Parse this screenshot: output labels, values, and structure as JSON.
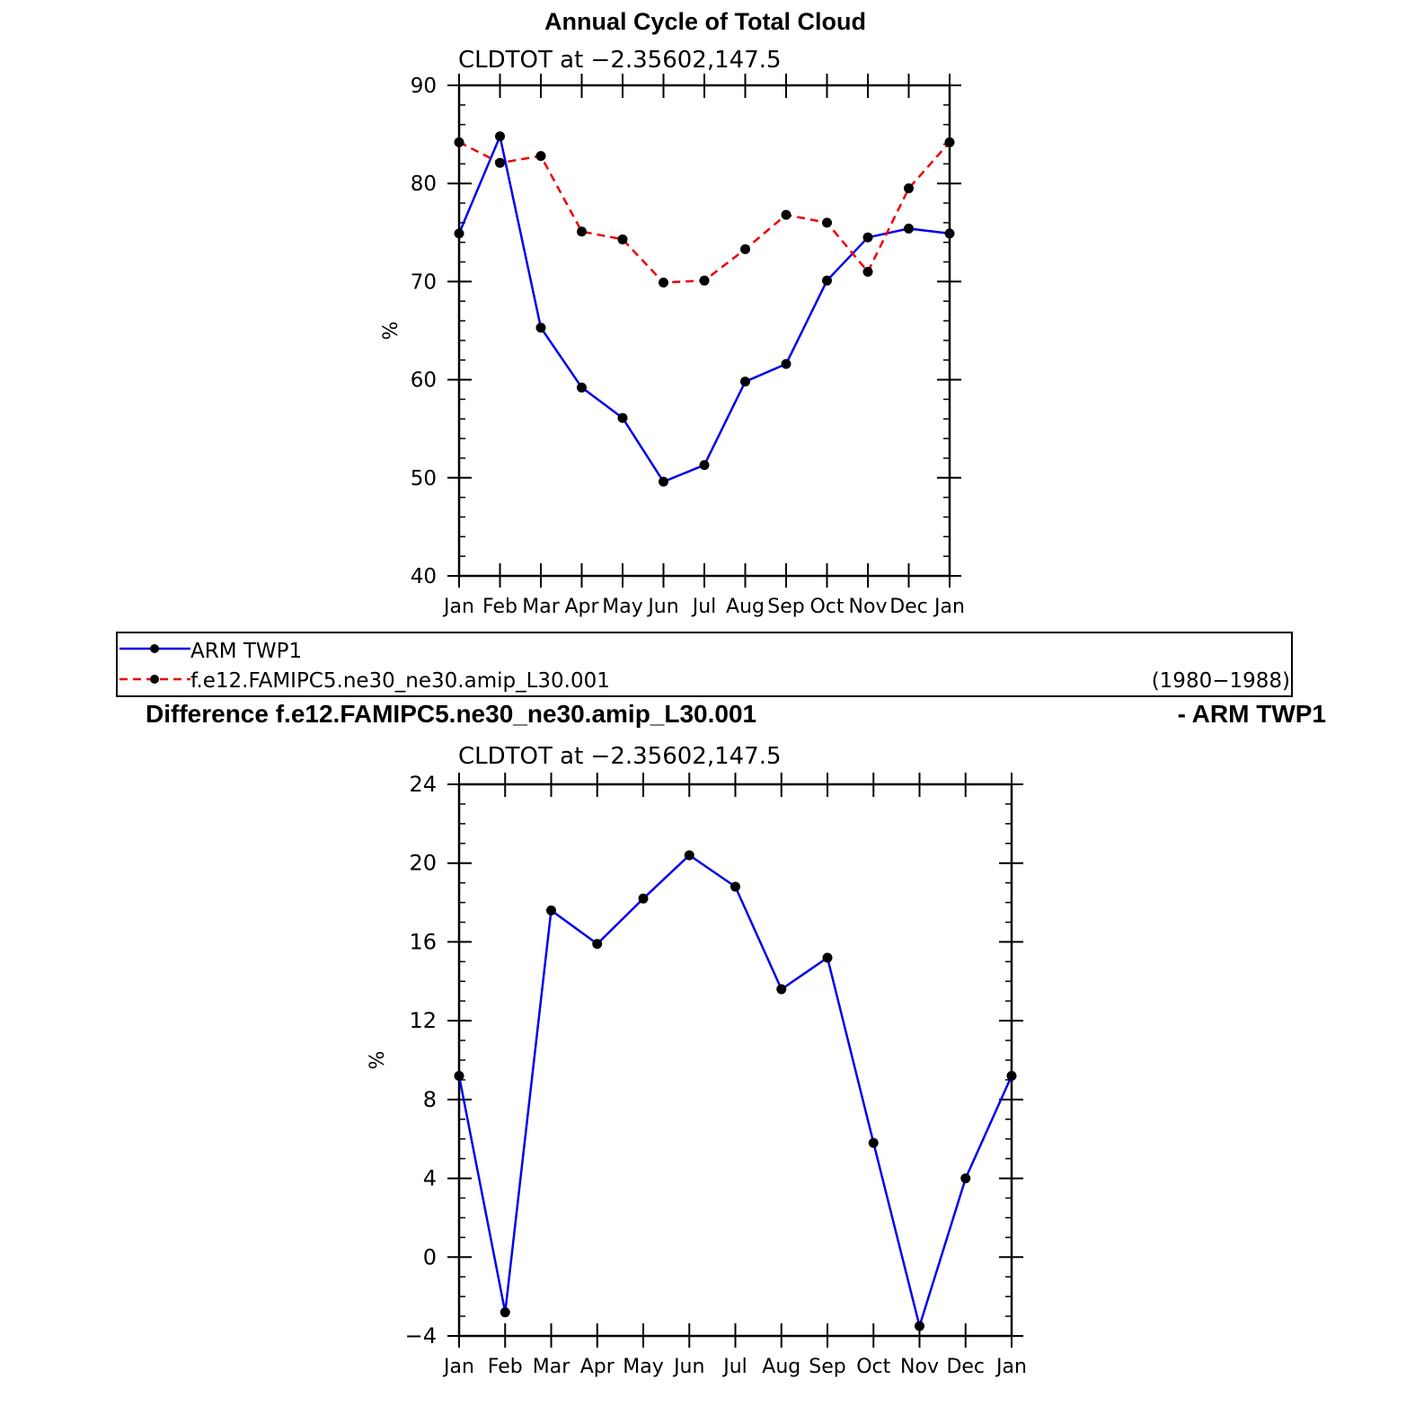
{
  "chart_data": [
    {
      "type": "line",
      "title": "Annual Cycle of Total Cloud",
      "subtitle": "CLDTOT at −2.35602,147.5",
      "xlabel": "",
      "ylabel": "%",
      "categories": [
        "Jan",
        "Feb",
        "Mar",
        "Apr",
        "May",
        "Jun",
        "Jul",
        "Aug",
        "Sep",
        "Oct",
        "Nov",
        "Dec",
        "Jan"
      ],
      "ylim": [
        40,
        90
      ],
      "yticks": [
        40,
        50,
        60,
        70,
        80,
        90
      ],
      "ytick_labels": [
        "40",
        "50",
        "60",
        "70",
        "80",
        "90"
      ],
      "yminor_step": 2,
      "series": [
        {
          "name": "ARM TWP1",
          "color": "#0000ee",
          "dash": "solid",
          "values": [
            74.9,
            84.8,
            65.3,
            59.2,
            56.1,
            49.6,
            51.3,
            59.8,
            61.6,
            70.1,
            74.5,
            75.4,
            74.9
          ]
        },
        {
          "name": "f.e12.FAMIPC5.ne30_ne30.amip_L30.001",
          "color": "#ee0000",
          "dash": "dashed",
          "values": [
            84.2,
            82.1,
            82.8,
            75.1,
            74.3,
            69.9,
            70.1,
            73.3,
            76.8,
            76.0,
            71.0,
            79.5,
            84.2
          ]
        }
      ],
      "legend": {
        "position": "below",
        "entries": [
          "ARM TWP1",
          "f.e12.FAMIPC5.ne30_ne30.amip_L30.001"
        ],
        "period": "(1980−1988)"
      }
    },
    {
      "type": "line",
      "title_left": "Difference f.e12.FAMIPC5.ne30_ne30.amip_L30.001",
      "title_right": "- ARM TWP1",
      "subtitle": "CLDTOT at −2.35602,147.5",
      "xlabel": "",
      "ylabel": "%",
      "categories": [
        "Jan",
        "Feb",
        "Mar",
        "Apr",
        "May",
        "Jun",
        "Jul",
        "Aug",
        "Sep",
        "Oct",
        "Nov",
        "Dec",
        "Jan"
      ],
      "ylim": [
        -4,
        24
      ],
      "yticks": [
        -4,
        0,
        4,
        8,
        12,
        16,
        20,
        24
      ],
      "ytick_labels": [
        "−4",
        "0",
        "4",
        "8",
        "12",
        "16",
        "20",
        "24"
      ],
      "yminor_step": 1,
      "series": [
        {
          "name": "Difference",
          "color": "#0000ee",
          "dash": "solid",
          "values": [
            9.2,
            -2.8,
            17.6,
            15.9,
            18.2,
            20.4,
            18.8,
            13.6,
            15.2,
            5.8,
            -3.5,
            4.0,
            9.2
          ]
        }
      ]
    }
  ]
}
